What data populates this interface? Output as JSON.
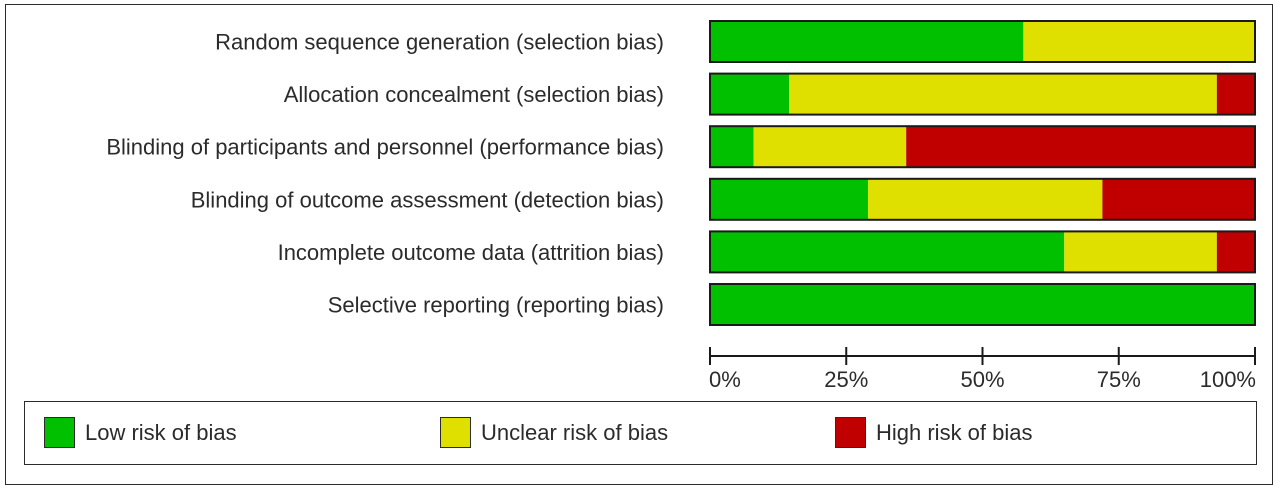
{
  "chart_data": {
    "type": "bar",
    "stacked": true,
    "orientation": "horizontal",
    "categories": [
      "Random sequence generation (selection bias)",
      "Allocation concealment (selection bias)",
      "Blinding of participants and personnel (performance bias)",
      "Blinding of outcome assessment (detection bias)",
      "Incomplete outcome data (attrition bias)",
      "Selective reporting (reporting bias)"
    ],
    "series": [
      {
        "name": "Low risk of bias",
        "color": "#00c000",
        "values": [
          57.5,
          14.5,
          8,
          29,
          65,
          100
        ]
      },
      {
        "name": "Unclear risk of bias",
        "color": "#e0e000",
        "values": [
          42.5,
          78.5,
          28,
          43,
          28,
          0
        ]
      },
      {
        "name": "High risk of bias",
        "color": "#c00000",
        "values": [
          0,
          7,
          64,
          28,
          7,
          0
        ]
      }
    ],
    "xlim": [
      0,
      100
    ],
    "xticks": [
      "0%",
      "25%",
      "50%",
      "75%",
      "100%"
    ],
    "legend_position": "bottom"
  }
}
